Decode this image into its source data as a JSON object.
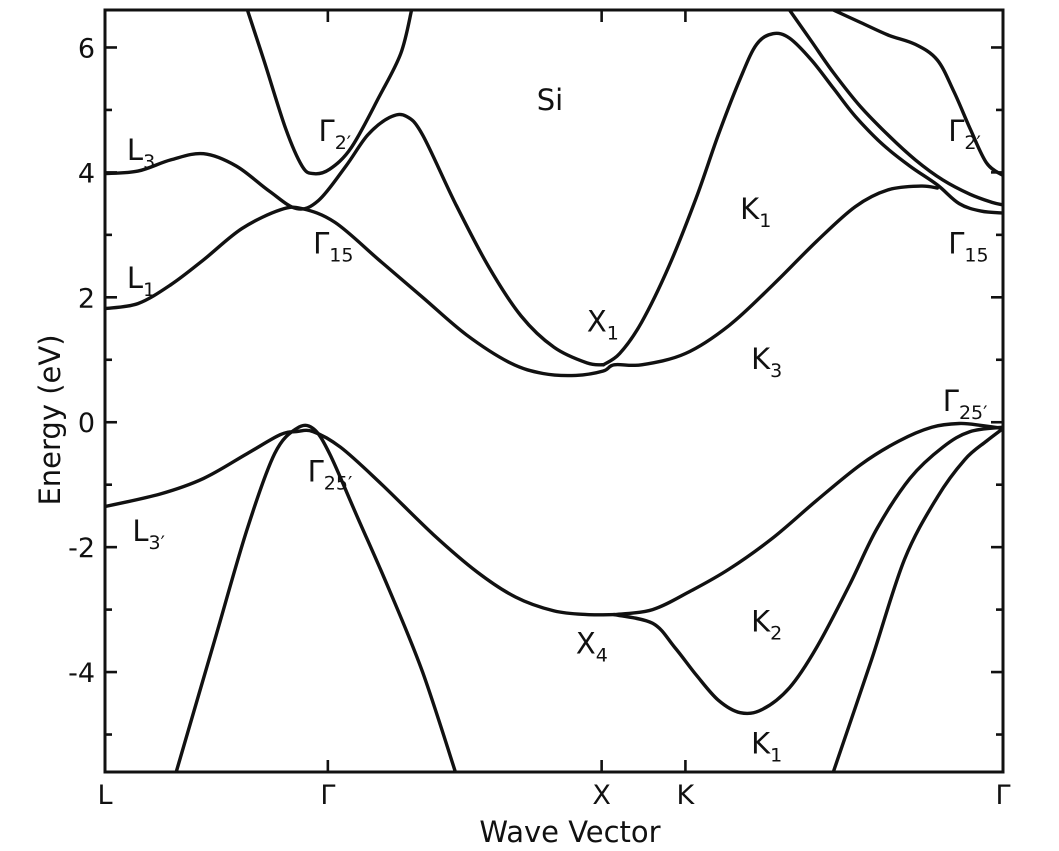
{
  "chart_data": {
    "type": "line",
    "title": "Si",
    "xlabel": "Wave Vector",
    "ylabel": "Energy (eV)",
    "ylim": [
      -5.6,
      6.6
    ],
    "yticks": [
      -4,
      -2,
      0,
      2,
      4,
      6
    ],
    "y_tick_labels": [
      "-4",
      "-2",
      "0",
      "2",
      "4",
      "6"
    ],
    "x_tick_labels": [
      "L",
      "Γ",
      "X",
      "K",
      "Γ"
    ],
    "grid": false,
    "series": [
      {
        "values": [
          [
            0,
            -1.35
          ],
          [
            0.1,
            -1.15
          ],
          [
            0.18,
            -0.9
          ],
          [
            0.26,
            -0.5
          ],
          [
            0.32,
            -0.2
          ],
          [
            0.35,
            -0.15
          ],
          [
            0.38,
            -0.15
          ],
          [
            0.43,
            -0.4
          ],
          [
            0.5,
            -0.95
          ],
          [
            0.6,
            -1.8
          ],
          [
            0.68,
            -2.4
          ],
          [
            0.75,
            -2.8
          ],
          [
            0.82,
            -3.02
          ],
          [
            0.88,
            -3.08
          ],
          [
            0.93,
            -3.08
          ]
        ]
      },
      {
        "values": [
          [
            0.13,
            -5.6
          ],
          [
            0.2,
            -3.5
          ],
          [
            0.26,
            -1.7
          ],
          [
            0.31,
            -0.5
          ],
          [
            0.35,
            -0.1
          ],
          [
            0.38,
            -0.1
          ],
          [
            0.41,
            -0.5
          ],
          [
            0.46,
            -1.5
          ],
          [
            0.52,
            -2.7
          ],
          [
            0.58,
            -4.0
          ],
          [
            0.64,
            -5.6
          ]
        ]
      },
      {
        "values": [
          [
            0.93,
            -3.08
          ],
          [
            1.0,
            -3.0
          ],
          [
            1.07,
            -2.7
          ],
          [
            1.14,
            -2.35
          ],
          [
            1.22,
            -1.85
          ],
          [
            1.3,
            -1.25
          ],
          [
            1.38,
            -0.68
          ],
          [
            1.45,
            -0.3
          ],
          [
            1.51,
            -0.08
          ],
          [
            1.56,
            -0.02
          ],
          [
            1.6,
            -0.05
          ],
          [
            1.64,
            -0.1
          ]
        ]
      },
      {
        "values": [
          [
            0.93,
            -3.08
          ],
          [
            1.0,
            -3.22
          ],
          [
            1.04,
            -3.6
          ],
          [
            1.08,
            -4.05
          ],
          [
            1.12,
            -4.45
          ],
          [
            1.16,
            -4.65
          ],
          [
            1.2,
            -4.6
          ],
          [
            1.25,
            -4.25
          ],
          [
            1.3,
            -3.6
          ],
          [
            1.36,
            -2.6
          ],
          [
            1.41,
            -1.7
          ],
          [
            1.47,
            -0.9
          ],
          [
            1.53,
            -0.4
          ],
          [
            1.58,
            -0.15
          ],
          [
            1.64,
            -0.08
          ]
        ]
      },
      {
        "values": [
          [
            1.33,
            -5.6
          ],
          [
            1.4,
            -3.8
          ],
          [
            1.46,
            -2.2
          ],
          [
            1.52,
            -1.2
          ],
          [
            1.57,
            -0.6
          ],
          [
            1.61,
            -0.3
          ],
          [
            1.64,
            -0.1
          ]
        ]
      },
      {
        "values": [
          [
            0,
            1.82
          ],
          [
            0.06,
            1.9
          ],
          [
            0.12,
            2.2
          ],
          [
            0.18,
            2.6
          ],
          [
            0.25,
            3.1
          ],
          [
            0.32,
            3.4
          ],
          [
            0.36,
            3.42
          ],
          [
            0.42,
            3.2
          ],
          [
            0.5,
            2.6
          ],
          [
            0.58,
            2.0
          ],
          [
            0.66,
            1.4
          ],
          [
            0.74,
            0.95
          ],
          [
            0.8,
            0.78
          ],
          [
            0.86,
            0.75
          ],
          [
            0.91,
            0.82
          ],
          [
            0.93,
            0.92
          ],
          [
            0.98,
            0.92
          ],
          [
            1.06,
            1.1
          ],
          [
            1.14,
            1.55
          ],
          [
            1.22,
            2.2
          ],
          [
            1.3,
            2.9
          ],
          [
            1.37,
            3.45
          ],
          [
            1.43,
            3.72
          ],
          [
            1.49,
            3.78
          ],
          [
            1.52,
            3.75
          ]
        ]
      },
      {
        "values": [
          [
            0,
            3.98
          ],
          [
            0.06,
            4.02
          ],
          [
            0.12,
            4.2
          ],
          [
            0.18,
            4.3
          ],
          [
            0.24,
            4.1
          ],
          [
            0.3,
            3.7
          ],
          [
            0.35,
            3.42
          ],
          [
            0.39,
            3.55
          ],
          [
            0.44,
            4.1
          ],
          [
            0.48,
            4.6
          ],
          [
            0.52,
            4.88
          ],
          [
            0.55,
            4.9
          ],
          [
            0.58,
            4.6
          ],
          [
            0.64,
            3.5
          ],
          [
            0.7,
            2.5
          ],
          [
            0.76,
            1.7
          ],
          [
            0.82,
            1.2
          ],
          [
            0.88,
            0.95
          ],
          [
            0.91,
            0.92
          ]
        ]
      },
      {
        "values": [
          [
            0.26,
            6.6
          ],
          [
            0.29,
            5.8
          ],
          [
            0.33,
            4.7
          ],
          [
            0.36,
            4.1
          ],
          [
            0.38,
            3.98
          ],
          [
            0.41,
            4.05
          ],
          [
            0.45,
            4.4
          ],
          [
            0.5,
            5.2
          ],
          [
            0.54,
            5.9
          ],
          [
            0.56,
            6.6
          ]
        ]
      },
      {
        "values": [
          [
            0.91,
            0.92
          ],
          [
            0.94,
            1.1
          ],
          [
            0.98,
            1.6
          ],
          [
            1.03,
            2.5
          ],
          [
            1.08,
            3.6
          ],
          [
            1.12,
            4.6
          ],
          [
            1.16,
            5.5
          ],
          [
            1.19,
            6.05
          ],
          [
            1.22,
            6.22
          ],
          [
            1.25,
            6.15
          ],
          [
            1.29,
            5.8
          ],
          [
            1.33,
            5.35
          ],
          [
            1.37,
            4.9
          ],
          [
            1.42,
            4.45
          ],
          [
            1.47,
            4.1
          ],
          [
            1.52,
            3.8
          ],
          [
            1.56,
            3.5
          ],
          [
            1.6,
            3.38
          ],
          [
            1.64,
            3.35
          ]
        ]
      },
      {
        "values": [
          [
            1.25,
            6.6
          ],
          [
            1.29,
            6.1
          ],
          [
            1.33,
            5.6
          ],
          [
            1.38,
            5.05
          ],
          [
            1.43,
            4.6
          ],
          [
            1.48,
            4.2
          ],
          [
            1.53,
            3.88
          ],
          [
            1.58,
            3.65
          ],
          [
            1.62,
            3.52
          ],
          [
            1.64,
            3.48
          ]
        ]
      },
      {
        "values": [
          [
            1.33,
            6.6
          ],
          [
            1.38,
            6.4
          ],
          [
            1.43,
            6.2
          ],
          [
            1.48,
            6.05
          ],
          [
            1.52,
            5.8
          ],
          [
            1.55,
            5.3
          ],
          [
            1.58,
            4.7
          ],
          [
            1.61,
            4.15
          ],
          [
            1.64,
            3.95
          ]
        ]
      }
    ],
    "annotations": [
      {
        "x": 0.04,
        "y": 4.2,
        "main": "L",
        "sub": "3"
      },
      {
        "x": 0.04,
        "y": 2.15,
        "main": "L",
        "sub": "1"
      },
      {
        "x": 0.05,
        "y": -1.9,
        "main": "L",
        "sub": "3′"
      },
      {
        "x": 0.39,
        "y": 4.5,
        "main": "Γ",
        "sub": "2′"
      },
      {
        "x": 0.38,
        "y": 2.7,
        "main": "Γ",
        "sub": "15"
      },
      {
        "x": 0.37,
        "y": -0.95,
        "main": "Γ",
        "sub": "25′"
      },
      {
        "x": 0.88,
        "y": 1.45,
        "main": "X",
        "sub": "1"
      },
      {
        "x": 0.86,
        "y": -3.7,
        "main": "X",
        "sub": "4"
      },
      {
        "x": 1.16,
        "y": 3.25,
        "main": "K",
        "sub": "1"
      },
      {
        "x": 1.18,
        "y": 0.85,
        "main": "K",
        "sub": "3"
      },
      {
        "x": 1.18,
        "y": -3.35,
        "main": "K",
        "sub": "2"
      },
      {
        "x": 1.18,
        "y": -5.3,
        "main": "K",
        "sub": "1"
      },
      {
        "x": 1.54,
        "y": 4.5,
        "main": "Γ",
        "sub": "2′"
      },
      {
        "x": 1.54,
        "y": 2.7,
        "main": "Γ",
        "sub": "15"
      },
      {
        "x": 1.53,
        "y": 0.18,
        "main": "Γ",
        "sub": "25′"
      }
    ],
    "x_ticks_positions": [
      0,
      0.407,
      0.907,
      1.06,
      1.64
    ]
  }
}
